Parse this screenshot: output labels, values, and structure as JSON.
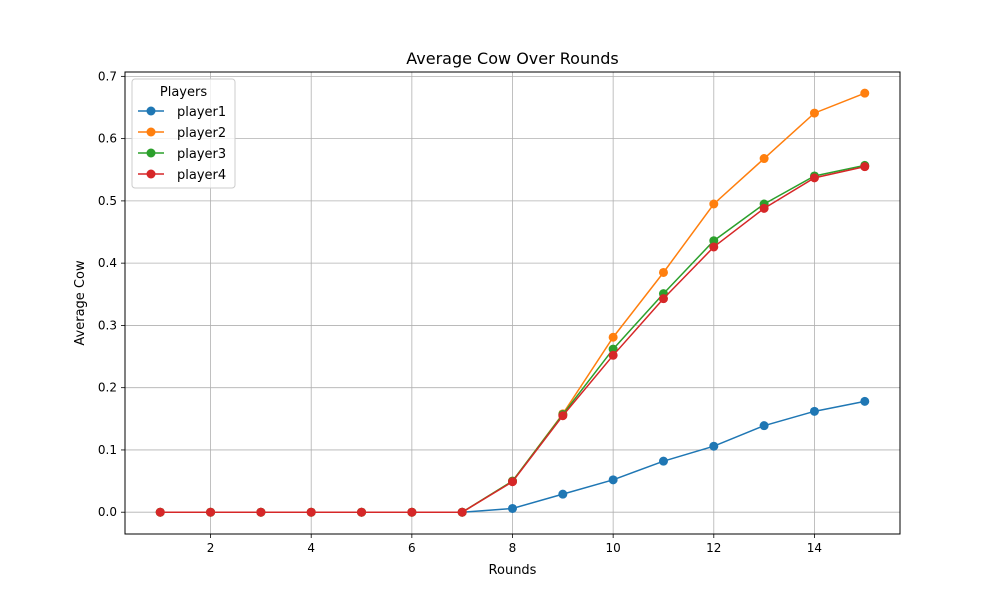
{
  "chart_data": {
    "type": "line",
    "title": "Average Cow Over Rounds",
    "xlabel": "Rounds",
    "ylabel": "Average Cow",
    "x": [
      1,
      2,
      3,
      4,
      5,
      6,
      7,
      8,
      9,
      10,
      11,
      12,
      13,
      14,
      15
    ],
    "xlim": [
      0.3,
      15.7
    ],
    "ylim": [
      -0.035,
      0.707
    ],
    "xticks": [
      2,
      4,
      6,
      8,
      10,
      12,
      14
    ],
    "xtick_labels": [
      "2",
      "4",
      "6",
      "8",
      "10",
      "12",
      "14"
    ],
    "yticks": [
      0.0,
      0.1,
      0.2,
      0.3,
      0.4,
      0.5,
      0.6,
      0.7
    ],
    "ytick_labels": [
      "0.0",
      "0.1",
      "0.2",
      "0.3",
      "0.4",
      "0.5",
      "0.6",
      "0.7"
    ],
    "grid": true,
    "legend": {
      "title": "Players",
      "placement": "top-left"
    },
    "series": [
      {
        "name": "player1",
        "color": "#1f77b4",
        "values": [
          0,
          0,
          0,
          0,
          0,
          0,
          0,
          0.006,
          0.029,
          0.052,
          0.082,
          0.106,
          0.139,
          0.162,
          0.178
        ]
      },
      {
        "name": "player2",
        "color": "#ff7f0e",
        "values": [
          0,
          0,
          0,
          0,
          0,
          0,
          0,
          0.05,
          0.158,
          0.281,
          0.385,
          0.495,
          0.568,
          0.641,
          0.673
        ]
      },
      {
        "name": "player3",
        "color": "#2ca02c",
        "values": [
          0,
          0,
          0,
          0,
          0,
          0,
          0,
          0.05,
          0.157,
          0.262,
          0.351,
          0.436,
          0.495,
          0.54,
          0.557
        ]
      },
      {
        "name": "player4",
        "color": "#d62728",
        "values": [
          0,
          0,
          0,
          0,
          0,
          0,
          0,
          0.049,
          0.155,
          0.252,
          0.343,
          0.426,
          0.488,
          0.537,
          0.555
        ]
      }
    ]
  }
}
